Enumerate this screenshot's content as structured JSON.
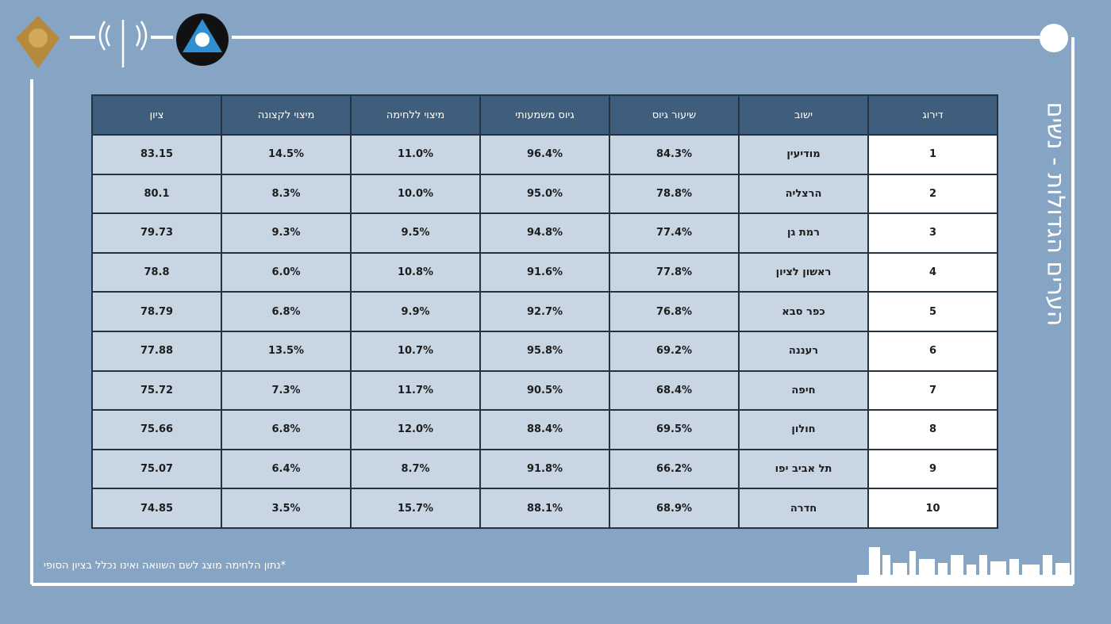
{
  "title": "הערים הגדולות - נשים",
  "table": {
    "headers": [
      "דירוג",
      "ישוב",
      "שיעור גיוס",
      "גיוס משמעותי",
      "מיצוי ללחימה",
      "מיצוי לקצונה",
      "ציון"
    ],
    "rows": [
      [
        "1",
        "מודיעין",
        "84.3%",
        "96.4%",
        "11.0%",
        "14.5%",
        "83.15"
      ],
      [
        "2",
        "הרצליה",
        "78.8%",
        "95.0%",
        "10.0%",
        "8.3%",
        "80.1"
      ],
      [
        "3",
        "רמת גן",
        "77.4%",
        "94.8%",
        "9.5%",
        "9.3%",
        "79.73"
      ],
      [
        "4",
        "ראשון לציון",
        "77.8%",
        "91.6%",
        "10.8%",
        "6.0%",
        "78.8"
      ],
      [
        "5",
        "כפר סבא",
        "76.8%",
        "92.7%",
        "9.9%",
        "6.8%",
        "78.79"
      ],
      [
        "6",
        "רעננה",
        "69.2%",
        "95.8%",
        "10.7%",
        "13.5%",
        "77.88"
      ],
      [
        "7",
        "חיפה",
        "68.4%",
        "90.5%",
        "11.7%",
        "7.3%",
        "75.72"
      ],
      [
        "8",
        "חולון",
        "69.5%",
        "88.4%",
        "12.0%",
        "6.8%",
        "75.66"
      ],
      [
        "9",
        "תל אביב יפו",
        "66.2%",
        "91.8%",
        "8.7%",
        "6.4%",
        "75.07"
      ],
      [
        "10",
        "חדרה",
        "68.9%",
        "88.1%",
        "15.7%",
        "3.5%",
        "74.85"
      ]
    ]
  },
  "footnote": "*נתון הלחימה מוצג לשם השוואה ואינו נכלל בציון הסופי"
}
